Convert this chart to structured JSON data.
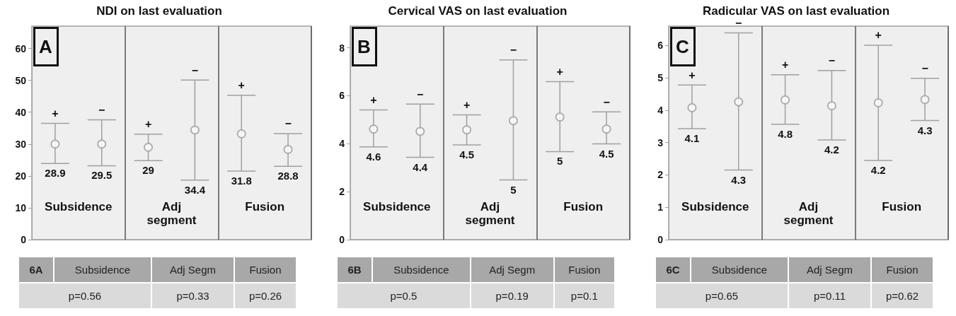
{
  "chart_data": [
    {
      "type": "scatter",
      "title": "NDI on last evaluation",
      "categories": [
        null,
        null,
        null,
        null,
        null,
        null
      ],
      "values": [
        30,
        30,
        29,
        34.4,
        33.2,
        28.3
      ],
      "errors": [
        [
          23.9,
          36.5
        ],
        [
          23.2,
          37.6
        ],
        [
          24.8,
          33.1
        ],
        [
          18.7,
          50.1
        ],
        [
          21.5,
          45.3
        ],
        [
          23,
          33.3
        ]
      ],
      "color": "#a0a0a0",
      "marker": "circle",
      "ylim": [
        0,
        67
      ],
      "yticks": [
        0,
        10,
        20,
        30,
        40,
        50,
        60
      ],
      "annotations": [
        "A",
        "Subsidence",
        "Adj segment",
        "Fusion",
        "6A",
        "Subsidence",
        "Adj Segm",
        "Fusion",
        "p=0.56",
        "p=0.33",
        "p=0.26",
        "+",
        "−",
        "+",
        "−",
        "+",
        "−",
        "28.9",
        "29.5",
        "29",
        "34.4",
        "31.8",
        "28.8"
      ]
    },
    {
      "type": "scatter",
      "title": "Cervical VAS on last evaluation",
      "categories": [
        null,
        null,
        null,
        null,
        null,
        null
      ],
      "values": [
        4.61,
        4.51,
        4.58,
        4.96,
        5.11,
        4.61
      ],
      "errors": [
        [
          3.87,
          5.41
        ],
        [
          3.43,
          5.65
        ],
        [
          3.95,
          5.2
        ],
        [
          2.49,
          7.49
        ],
        [
          3.67,
          6.59
        ],
        [
          3.99,
          5.33
        ]
      ],
      "color": "#a0a0a0",
      "marker": "circle",
      "ylim": [
        0,
        8.9
      ],
      "yticks": [
        0,
        2,
        4,
        6,
        8
      ],
      "annotations": [
        "B",
        "Subsidence",
        "Adj segment",
        "Fusion",
        "6B",
        "Subsidence",
        "Adj Segm",
        "Fusion",
        "p=0.5",
        "p=0.19",
        "p=0.1",
        "+",
        "−",
        "+",
        "−",
        "+",
        "−",
        "4.6",
        "4.4",
        "4.5",
        "5",
        "5",
        "4.5"
      ]
    },
    {
      "type": "scatter",
      "title": "Radicular VAS on last evaluation",
      "categories": [
        null,
        null,
        null,
        null,
        null,
        null
      ],
      "values": [
        4.08,
        4.26,
        4.32,
        4.14,
        4.23,
        4.33
      ],
      "errors": [
        [
          3.43,
          4.78
        ],
        [
          2.15,
          6.39
        ],
        [
          3.57,
          5.1
        ],
        [
          3.08,
          5.23
        ],
        [
          2.45,
          6.01
        ],
        [
          3.68,
          4.99
        ]
      ],
      "color": "#a0a0a0",
      "marker": "circle",
      "ylim": [
        0,
        6.6
      ],
      "yticks": [
        0,
        1,
        2,
        3,
        4,
        5,
        6
      ],
      "annotations": [
        "C",
        "Subsidence",
        "Adj segment",
        "Fusion",
        "6C",
        "Subsidence",
        "Adj Segm",
        "Fusion",
        "p=0.65",
        "p=0.11",
        "p=0.62",
        "+",
        "−",
        "+",
        "−",
        "+",
        "−",
        "4.1",
        "4.3",
        "4.8",
        "4.2",
        "4.2",
        "4.3"
      ]
    }
  ]
}
